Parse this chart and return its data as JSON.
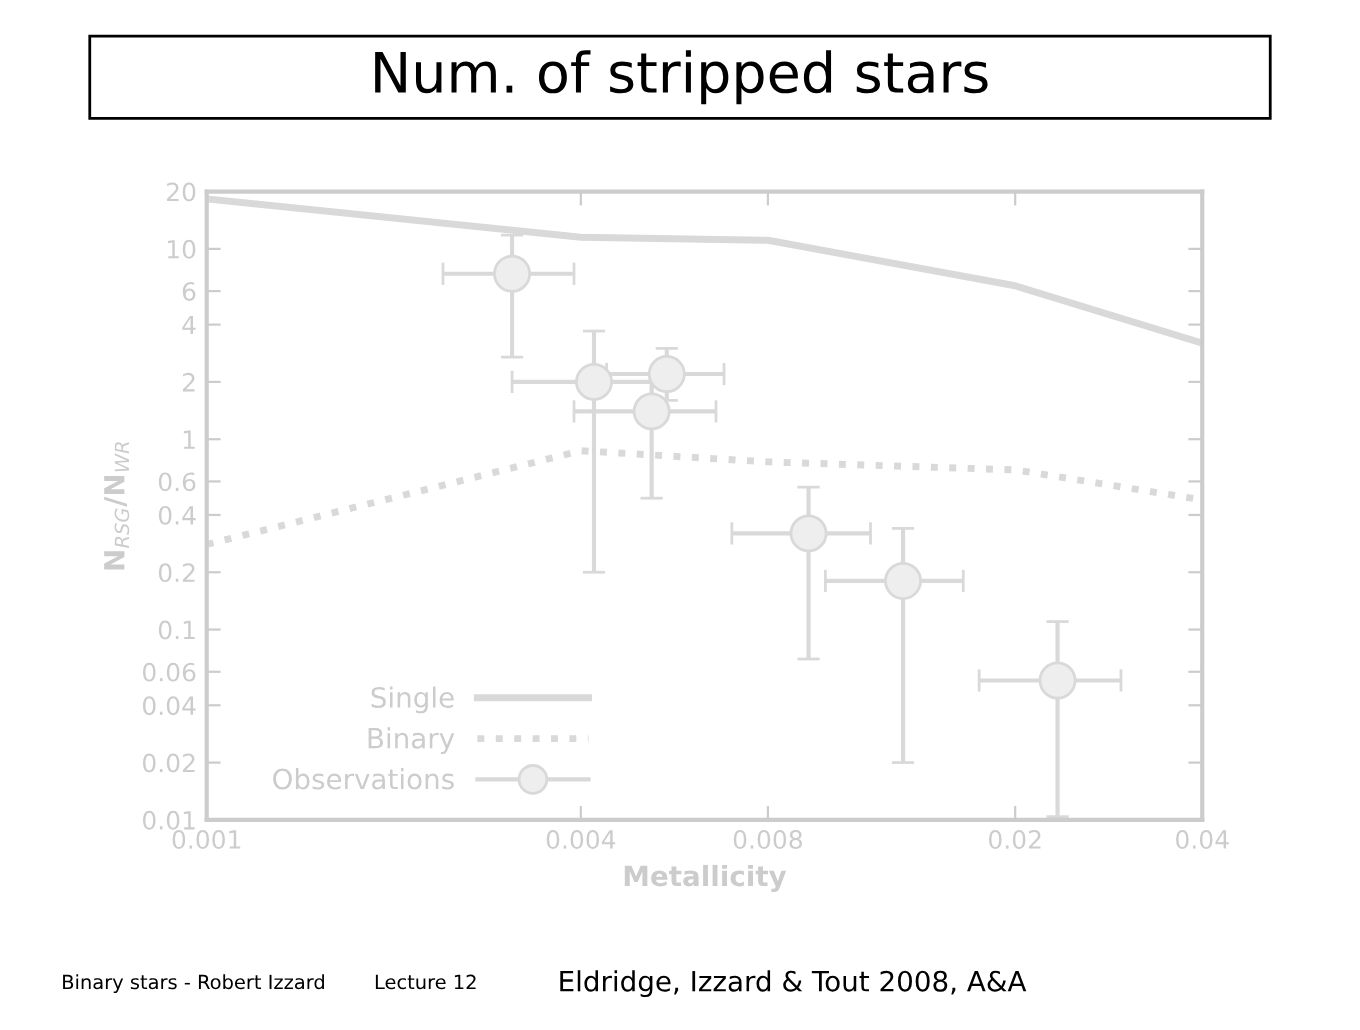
{
  "chart_data": {
    "type": "line",
    "title": "Num. of stripped stars",
    "xlabel": "Metallicity",
    "ylabel": "N$_{RSG}$/N$_{WR}$",
    "log": "xy",
    "xlim": [
      0.001,
      0.04
    ],
    "ylim": [
      0.01,
      20
    ],
    "xticks": [
      0.001,
      0.004,
      0.008,
      0.02,
      0.04
    ],
    "yticks": [
      0.01,
      0.02,
      0.04,
      0.06,
      0.1,
      0.2,
      0.4,
      0.6,
      1,
      2,
      4,
      6,
      10,
      20
    ],
    "grid": false,
    "legend": "bottom left",
    "series": [
      {
        "name": "Single",
        "color": "#d9d9d9",
        "line_style": "solid",
        "x": [
          0.001,
          0.004,
          0.008,
          0.02,
          0.04
        ],
        "values": [
          18.3,
          11.5,
          11.1,
          6.4,
          3.2
        ]
      },
      {
        "name": "Binary",
        "color": "#d9d9d9",
        "line_style": "dotted",
        "x": [
          0.001,
          0.004,
          0.008,
          0.02,
          0.04
        ],
        "values": [
          0.28,
          0.87,
          0.76,
          0.69,
          0.48
        ]
      },
      {
        "name": "Observations",
        "type": "scatter",
        "color": "#d9d9d9",
        "marker": "circle",
        "x": [
          0.0031,
          0.0042,
          0.0055,
          0.0052,
          0.0093,
          0.0132,
          0.0234
        ],
        "values": [
          7.4,
          2.0,
          2.2,
          1.4,
          0.32,
          0.18,
          0.054
        ],
        "errors": [
          [
            2.7,
            11.8
          ],
          [
            0.2,
            3.7
          ],
          [
            1.6,
            3.0
          ],
          [
            0.49,
            2.0
          ],
          [
            0.07,
            0.56
          ],
          [
            0.02,
            0.34
          ],
          [
            0.0104,
            0.11
          ]
        ],
        "xerrors": [
          [
            0.0024,
            0.0039
          ],
          [
            0.0031,
            0.0052
          ],
          [
            0.0044,
            0.0068
          ],
          [
            0.0039,
            0.0066
          ],
          [
            0.007,
            0.0117
          ],
          [
            0.0099,
            0.0165
          ],
          [
            0.0175,
            0.0296
          ]
        ]
      }
    ],
    "annotations": [
      "Binary stars - Robert Izzard",
      "Lecture 12",
      "Eldridge, Izzard & Tout 2008, A&A"
    ]
  }
}
